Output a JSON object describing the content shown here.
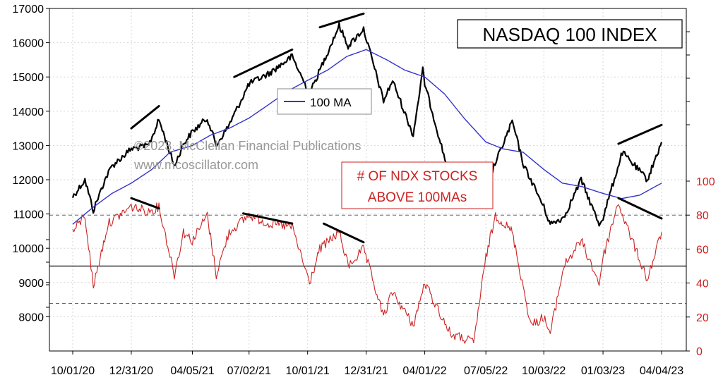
{
  "chart_data": {
    "type": "line",
    "title": "NASDAQ 100 INDEX",
    "copyright": "©2023, McClellan Financial Publications",
    "website": "www.mcoscillator.com",
    "lower_title_line1": "# OF NDX STOCKS",
    "lower_title_line2": "ABOVE 100MAs",
    "x_tick_labels": [
      "10/01/20",
      "12/31/20",
      "04/05/21",
      "07/02/21",
      "10/01/21",
      "12/31/21",
      "04/01/22",
      "07/05/22",
      "10/03/22",
      "01/03/23",
      "04/04/23"
    ],
    "left_axis": {
      "ylim": [
        7000,
        17000
      ],
      "ticks": [
        8000,
        9000,
        10000,
        11000,
        12000,
        13000,
        14000,
        15000,
        16000,
        17000
      ]
    },
    "right_axis": {
      "ylim": [
        0,
        100
      ],
      "ticks": [
        0,
        20,
        40,
        60,
        80,
        100
      ]
    },
    "legend": {
      "label": "100 MA",
      "placement": "left-middle"
    },
    "colors": {
      "index": "#000000",
      "ma": "#3333cc",
      "breadth": "#cc2222",
      "divergence": "#000000"
    },
    "series": [
      {
        "name": "NASDAQ 100 INDEX",
        "axis": "left",
        "x": [
          "10/01/20",
          "10/20/20",
          "11/02/20",
          "11/20/20",
          "12/01/20",
          "12/31/20",
          "01/27/21",
          "02/12/21",
          "03/08/21",
          "03/22/21",
          "04/05/21",
          "04/28/21",
          "05/12/21",
          "06/01/21",
          "07/02/21",
          "08/02/21",
          "09/07/21",
          "10/04/21",
          "10/20/21",
          "11/19/21",
          "12/03/21",
          "12/27/21",
          "01/27/22",
          "02/10/22",
          "03/14/22",
          "03/29/22",
          "04/01/22",
          "05/11/22",
          "06/16/22",
          "07/05/22",
          "08/15/22",
          "09/02/22",
          "09/13/22",
          "10/03/22",
          "10/13/22",
          "11/03/22",
          "11/30/22",
          "12/28/22",
          "01/03/23",
          "02/02/23",
          "03/13/23",
          "04/04/23"
        ],
        "values": [
          11500,
          12000,
          11100,
          12000,
          12400,
          12900,
          13000,
          13750,
          12400,
          13050,
          13400,
          13800,
          13000,
          13600,
          14800,
          15100,
          15600,
          14500,
          15200,
          16500,
          15900,
          16400,
          14300,
          14900,
          13300,
          15200,
          14800,
          12000,
          11200,
          11800,
          13700,
          12400,
          12000,
          11200,
          10700,
          10900,
          12000,
          10700,
          10900,
          12800,
          12000,
          13100
        ]
      },
      {
        "name": "100 MA",
        "axis": "left",
        "x": [
          "10/01/20",
          "11/02/20",
          "12/01/20",
          "12/31/20",
          "02/01/21",
          "03/01/21",
          "04/05/21",
          "05/03/21",
          "06/01/21",
          "07/02/21",
          "08/02/21",
          "09/01/21",
          "10/01/21",
          "11/01/21",
          "12/01/21",
          "12/31/21",
          "02/01/22",
          "03/01/22",
          "04/01/22",
          "05/02/22",
          "06/01/22",
          "07/05/22",
          "08/01/22",
          "09/01/22",
          "10/03/22",
          "11/01/22",
          "12/01/22",
          "01/03/23",
          "02/01/23",
          "03/01/23",
          "04/04/23"
        ],
        "values": [
          10700,
          11200,
          11600,
          11900,
          12300,
          12800,
          13000,
          13300,
          13500,
          13800,
          14200,
          14600,
          14900,
          15200,
          15600,
          15800,
          15500,
          15200,
          15000,
          14500,
          13800,
          13100,
          12900,
          12800,
          12300,
          11900,
          11800,
          11600,
          11450,
          11550,
          11900
        ]
      },
      {
        "name": "# OF NDX STOCKS ABOVE 100MAs",
        "axis": "right",
        "x": [
          "10/01/20",
          "10/20/20",
          "11/02/20",
          "11/25/20",
          "12/31/20",
          "01/27/21",
          "02/12/21",
          "03/08/21",
          "03/22/21",
          "04/05/21",
          "04/28/21",
          "05/12/21",
          "06/01/21",
          "07/02/21",
          "08/02/21",
          "09/07/21",
          "10/04/21",
          "10/20/21",
          "11/19/21",
          "12/03/21",
          "12/27/21",
          "01/27/22",
          "02/10/22",
          "03/14/22",
          "04/01/22",
          "05/11/22",
          "06/16/22",
          "07/05/22",
          "07/20/22",
          "08/15/22",
          "09/13/22",
          "10/03/22",
          "10/13/22",
          "11/03/22",
          "11/30/22",
          "12/28/22",
          "01/03/23",
          "01/27/23",
          "02/02/23",
          "03/13/23",
          "04/04/23"
        ],
        "values": [
          70,
          80,
          38,
          75,
          85,
          82,
          85,
          45,
          70,
          65,
          80,
          45,
          70,
          80,
          75,
          73,
          40,
          60,
          70,
          50,
          60,
          20,
          35,
          15,
          40,
          10,
          5,
          55,
          80,
          70,
          15,
          20,
          10,
          50,
          65,
          40,
          55,
          88,
          80,
          42,
          70
        ]
      }
    ],
    "divergence_lines": [
      {
        "axis": "left",
        "x": [
          "12/31/20",
          "02/12/21"
        ],
        "values": [
          13500,
          14150
        ]
      },
      {
        "axis": "left",
        "x": [
          "06/09/21",
          "09/07/21"
        ],
        "values": [
          15000,
          15800
        ]
      },
      {
        "axis": "left",
        "x": [
          "10/20/21",
          "12/27/21"
        ],
        "values": [
          16450,
          16850
        ]
      },
      {
        "axis": "left",
        "x": [
          "01/27/23",
          "04/04/23"
        ],
        "values": [
          13050,
          13600
        ]
      },
      {
        "axis": "right",
        "x": [
          "12/31/20",
          "02/12/21"
        ],
        "values": [
          90,
          84
        ]
      },
      {
        "axis": "right",
        "x": [
          "06/23/21",
          "09/07/21"
        ],
        "values": [
          81,
          75
        ]
      },
      {
        "axis": "right",
        "x": [
          "10/26/21",
          "12/27/21"
        ],
        "values": [
          75,
          64
        ]
      },
      {
        "axis": "right",
        "x": [
          "01/27/23",
          "04/04/23"
        ],
        "values": [
          90,
          78
        ]
      }
    ],
    "reference_lines": [
      {
        "axis": "right",
        "value": 80,
        "style": "dashed"
      },
      {
        "axis": "right",
        "value": 50,
        "style": "solid"
      },
      {
        "axis": "right",
        "value": 28,
        "style": "dashed"
      }
    ],
    "grid": true
  }
}
